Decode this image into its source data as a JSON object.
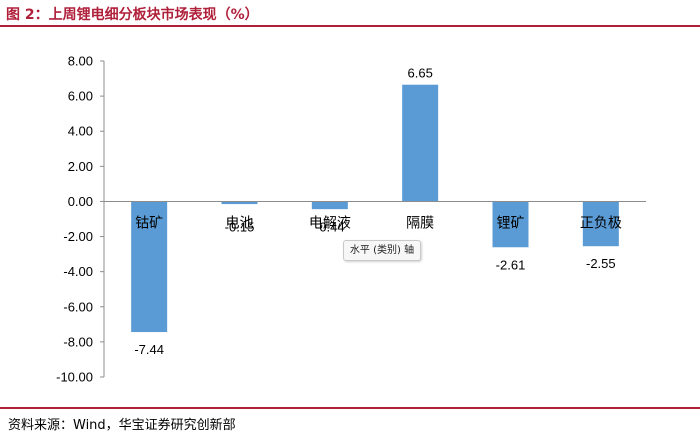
{
  "header": {
    "title": "图 2：上周锂电细分板块市场表现（%）"
  },
  "footer": {
    "source": "资料来源：Wind，华宝证券研究创新部"
  },
  "tooltip": {
    "text": "水平 (类别) 轴"
  },
  "colors": {
    "bar": "#5b9bd5",
    "accent": "#b0203a",
    "axis": "#8c8c8c"
  },
  "chart_data": {
    "type": "bar",
    "categories": [
      "钴矿",
      "电池",
      "电解液",
      "隔膜",
      "锂矿",
      "正负极"
    ],
    "values": [
      -7.44,
      -0.15,
      -0.44,
      6.65,
      -2.61,
      -2.55
    ],
    "data_labels": [
      "-7.44",
      "-0.15",
      "-0.44",
      "6.65",
      "-2.61",
      "-2.55"
    ],
    "yticks": [
      "8.00",
      "6.00",
      "4.00",
      "2.00",
      "0.00",
      "-2.00",
      "-4.00",
      "-6.00",
      "-8.00",
      "-10.00"
    ],
    "ylim": [
      -10,
      8
    ],
    "xlabel": "",
    "ylabel": ""
  }
}
